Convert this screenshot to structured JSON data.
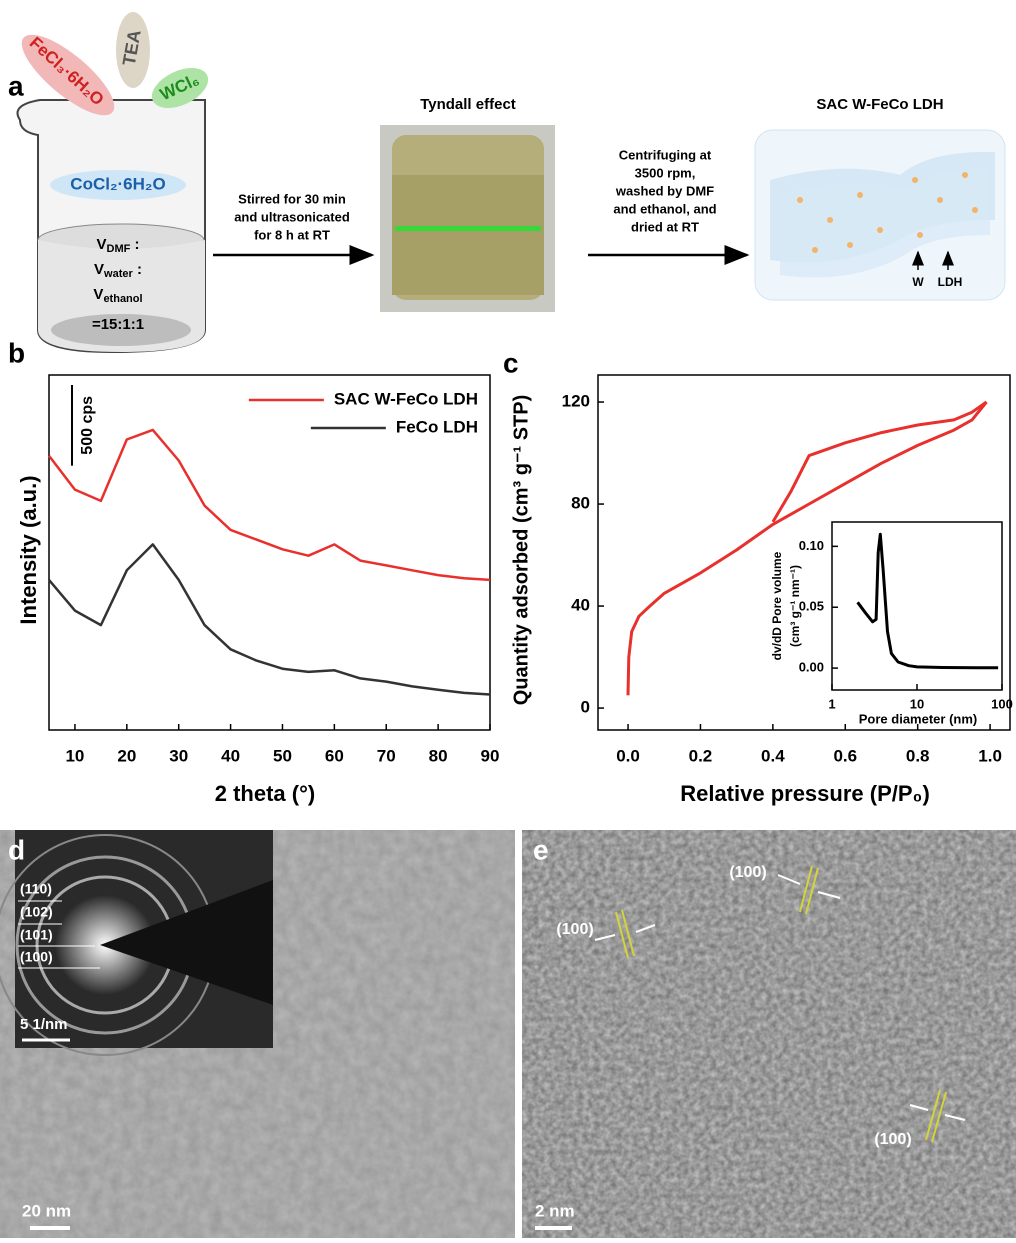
{
  "panel_labels": [
    "a",
    "b",
    "c",
    "d",
    "e"
  ],
  "panel_a": {
    "reagents": [
      "FeCl₃·6H₂O",
      "TEA",
      "WCl₆"
    ],
    "solution": "CoCl₂·6H₂O",
    "ratio": [
      {
        "main": "V",
        "sub": "DMF",
        "tail": " :"
      },
      {
        "main": "V",
        "sub": "water",
        "tail": " :"
      },
      {
        "main": "V",
        "sub": "ethanol"
      }
    ],
    "ratio_value": "=15:1:1",
    "step1": [
      "Stirred for 30 min",
      "and ultrasonicated",
      "for 8 h at RT"
    ],
    "photo_title": "Tyndall effect",
    "step2": [
      "Centrifuging at",
      "3500 rpm,",
      "washed by DMF",
      "and ethanol, and",
      "dried at RT"
    ],
    "product_title": "SAC W-FeCo LDH",
    "product_labels": [
      "W",
      "LDH"
    ]
  },
  "chart_data": [
    {
      "type": "line",
      "xlabel": "2 theta (°)",
      "ylabel": "Intensity (a.u.)",
      "x": [
        5,
        10,
        15,
        20,
        25,
        30,
        35,
        40,
        45,
        50,
        55,
        60,
        65,
        70,
        75,
        80,
        85,
        90
      ],
      "xlim": [
        5,
        90
      ],
      "xticks": [
        10,
        20,
        30,
        40,
        50,
        60,
        70,
        80,
        90
      ],
      "ylim": [
        0,
        2200
      ],
      "scale_bar": {
        "value": 500,
        "label": "500 cps"
      },
      "series": [
        {
          "name": "SAC W-FeCo LDH",
          "color": "#e8302c",
          "values": [
            1700,
            1490,
            1420,
            1800,
            1860,
            1670,
            1390,
            1240,
            1180,
            1120,
            1080,
            1150,
            1050,
            1020,
            990,
            960,
            940,
            930
          ]
        },
        {
          "name": "FeCo LDH",
          "color": "#333333",
          "values": [
            930,
            740,
            650,
            990,
            1150,
            930,
            650,
            500,
            430,
            380,
            360,
            370,
            320,
            300,
            270,
            250,
            230,
            220
          ]
        }
      ]
    },
    {
      "type": "line",
      "xlabel": "Relative pressure (P/P₀)",
      "ylabel": "Quantity adsorbed (cm³ g⁻¹ STP)",
      "xlim": [
        -0.083,
        1.055
      ],
      "xticks": [
        {
          "value": 0,
          "label": "0.0"
        },
        {
          "value": 0.2,
          "label": "0.2"
        },
        {
          "value": 0.4,
          "label": "0.4"
        },
        {
          "value": 0.6,
          "label": "0.6"
        },
        {
          "value": 0.8,
          "label": "0.8"
        },
        {
          "value": 1,
          "label": "1.0"
        }
      ],
      "ylim": [
        -8.6,
        130.6
      ],
      "yticks": [
        0,
        40,
        80,
        120
      ],
      "series": [
        {
          "color": "#e8302c",
          "x": [
            0,
            0.002,
            0.01,
            0.03,
            0.06,
            0.1,
            0.2,
            0.3,
            0.4,
            0.5,
            0.6,
            0.7,
            0.8,
            0.9,
            0.95,
            0.99
          ],
          "values": [
            5,
            20,
            30,
            36,
            40,
            45,
            53,
            62,
            72,
            80,
            88,
            96,
            103,
            109,
            113,
            120
          ]
        },
        {
          "color": "#e8302c",
          "x": [
            0.99,
            0.95,
            0.9,
            0.8,
            0.7,
            0.6,
            0.5,
            0.45,
            0.4
          ],
          "values": [
            120,
            116,
            113,
            111,
            108,
            104,
            99,
            85,
            73
          ]
        }
      ]
    },
    {
      "type": "line",
      "xscale": "log",
      "xlabel": "Pore diameter (nm)",
      "ylabel": [
        "dv/dD Pore volume",
        "(cm³ g⁻¹ nm⁻¹)"
      ],
      "xlim": [
        1,
        100
      ],
      "xticks": [
        1,
        10,
        100
      ],
      "ylim": [
        -0.018,
        0.12
      ],
      "yticks": [
        {
          "value": 0,
          "label": "0.00"
        },
        {
          "value": 0.05,
          "label": "0.05"
        },
        {
          "value": 0.1,
          "label": "0.10"
        }
      ],
      "series": [
        {
          "color": "#000000",
          "x": [
            2,
            2.5,
            3,
            3.3,
            3.5,
            3.7,
            4,
            4.5,
            5,
            6,
            8,
            10,
            20,
            50,
            90
          ],
          "values": [
            0.054,
            0.045,
            0.038,
            0.04,
            0.095,
            0.11,
            0.08,
            0.03,
            0.012,
            0.005,
            0.002,
            0.001,
            0.0005,
            0.0002,
            0.0002
          ]
        }
      ]
    }
  ],
  "panel_d": {
    "saed_rings": [
      "(110)",
      "(102)",
      "(101)",
      "(100)"
    ],
    "saed_scale": "5 1/nm",
    "scale": "20 nm"
  },
  "panel_e": {
    "fringes": [
      "(100)",
      "(100)",
      "(100)"
    ],
    "scale": "2 nm"
  }
}
